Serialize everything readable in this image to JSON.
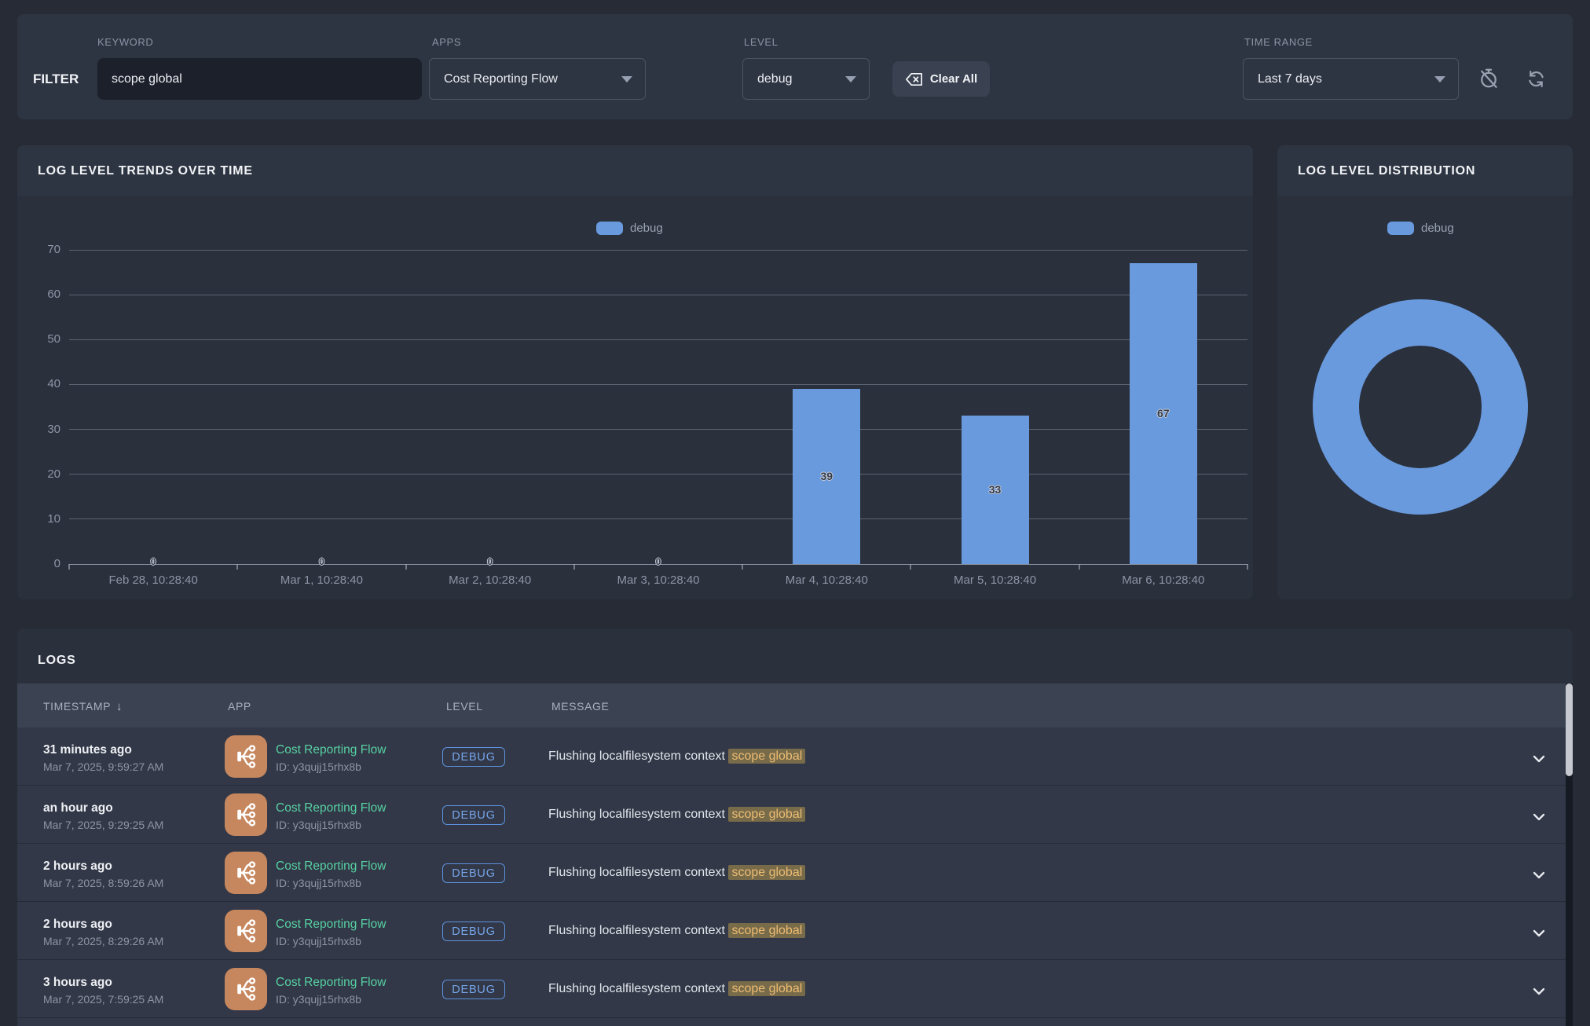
{
  "colors": {
    "accent_blue": "#699ade",
    "app_link_teal": "#57d1a3",
    "app_icon_salmon": "#c6875f",
    "highlight_bg": "#786b4a",
    "highlight_text": "#edbc72",
    "badge_blue": "#76a5ea"
  },
  "filter": {
    "label": "FILTER",
    "keyword": {
      "label": "KEYWORD",
      "value": "scope global"
    },
    "apps": {
      "label": "APPS",
      "value": "Cost Reporting Flow"
    },
    "level": {
      "label": "LEVEL",
      "value": "debug"
    },
    "clear_all_label": "Clear All",
    "time_range": {
      "label": "TIME RANGE",
      "value": "Last 7 days"
    }
  },
  "chart_data": [
    {
      "type": "bar",
      "title": "LOG LEVEL TRENDS OVER TIME",
      "categories": [
        "Feb 28, 10:28:40",
        "Mar 1, 10:28:40",
        "Mar 2, 10:28:40",
        "Mar 3, 10:28:40",
        "Mar 4, 10:28:40",
        "Mar 5, 10:28:40",
        "Mar 6, 10:28:40"
      ],
      "series": [
        {
          "name": "debug",
          "values": [
            0,
            0,
            0,
            0,
            39,
            33,
            67
          ],
          "color": "#699ade"
        }
      ],
      "ylim": [
        0,
        70
      ],
      "yticks": [
        0,
        10,
        20,
        30,
        40,
        50,
        60,
        70
      ],
      "grid": true,
      "legend_position": "top",
      "value_labels": true
    },
    {
      "type": "pie",
      "variant": "donut",
      "title": "LOG LEVEL DISTRIBUTION",
      "labels": [
        "debug"
      ],
      "values": [
        100
      ],
      "colors": [
        "#699ade"
      ],
      "legend_position": "top"
    }
  ],
  "logs": {
    "title": "LOGS",
    "columns": {
      "timestamp": "TIMESTAMP",
      "app": "APP",
      "level": "LEVEL",
      "message": "MESSAGE"
    },
    "sort_icon": "↓",
    "rows": [
      {
        "time_relative": "31 minutes ago",
        "time_absolute": "Mar 7, 2025, 9:59:27 AM",
        "app_name": "Cost Reporting Flow",
        "app_id": "ID: y3qujj15rhx8b",
        "level": "DEBUG",
        "message_prefix": "Flushing localfilesystem context",
        "message_highlight": "scope global"
      },
      {
        "time_relative": "an hour ago",
        "time_absolute": "Mar 7, 2025, 9:29:25 AM",
        "app_name": "Cost Reporting Flow",
        "app_id": "ID: y3qujj15rhx8b",
        "level": "DEBUG",
        "message_prefix": "Flushing localfilesystem context",
        "message_highlight": "scope global"
      },
      {
        "time_relative": "2 hours ago",
        "time_absolute": "Mar 7, 2025, 8:59:26 AM",
        "app_name": "Cost Reporting Flow",
        "app_id": "ID: y3qujj15rhx8b",
        "level": "DEBUG",
        "message_prefix": "Flushing localfilesystem context",
        "message_highlight": "scope global"
      },
      {
        "time_relative": "2 hours ago",
        "time_absolute": "Mar 7, 2025, 8:29:26 AM",
        "app_name": "Cost Reporting Flow",
        "app_id": "ID: y3qujj15rhx8b",
        "level": "DEBUG",
        "message_prefix": "Flushing localfilesystem context",
        "message_highlight": "scope global"
      },
      {
        "time_relative": "3 hours ago",
        "time_absolute": "Mar 7, 2025, 7:59:25 AM",
        "app_name": "Cost Reporting Flow",
        "app_id": "ID: y3qujj15rhx8b",
        "level": "DEBUG",
        "message_prefix": "Flushing localfilesystem context",
        "message_highlight": "scope global"
      }
    ]
  }
}
